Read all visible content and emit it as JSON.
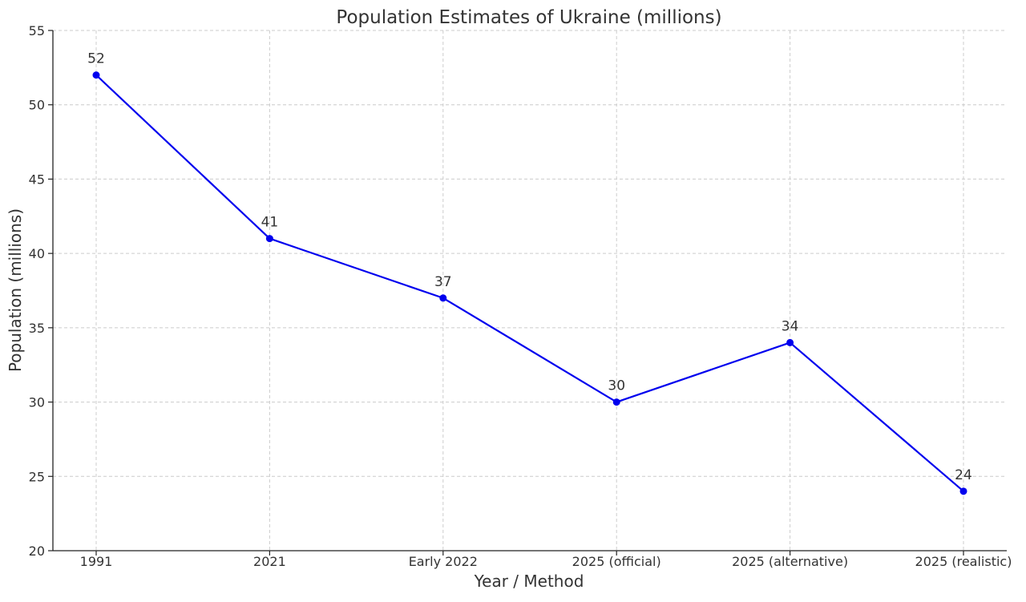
{
  "chart_data": {
    "type": "line",
    "title": "Population Estimates of Ukraine (millions)",
    "xlabel": "Year / Method",
    "ylabel": "Population (millions)",
    "categories": [
      "1991",
      "2021",
      "Early 2022",
      "2025 (official)",
      "2025 (alternative)",
      "2025 (realistic)"
    ],
    "series": [
      {
        "values": [
          52,
          41,
          37,
          30,
          34,
          24
        ],
        "color": "#0000ee"
      }
    ],
    "data_labels": [
      "52",
      "41",
      "37",
      "30",
      "34",
      "24"
    ],
    "ylim": [
      20,
      55
    ],
    "yticks": [
      20,
      25,
      30,
      35,
      40,
      45,
      50,
      55
    ],
    "ytick_labels": [
      "20",
      "25",
      "30",
      "35",
      "40",
      "45",
      "50",
      "55"
    ],
    "grid": true,
    "legend": false
  }
}
